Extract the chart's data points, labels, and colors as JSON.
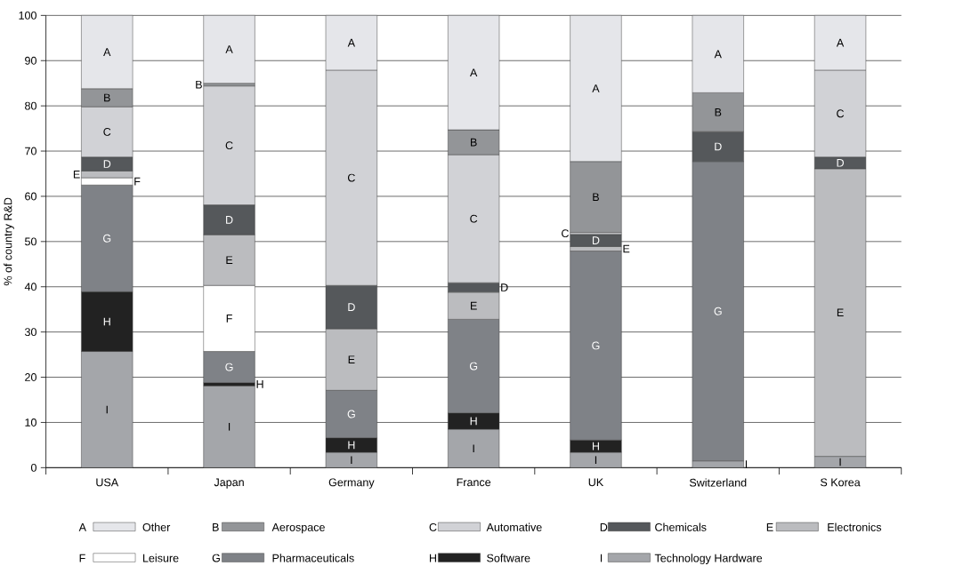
{
  "chart_data": {
    "type": "bar",
    "stacked": true,
    "ylabel": "% of country R&D",
    "categories": [
      "USA",
      "Japan",
      "Germany",
      "France",
      "UK",
      "Switzerland",
      "S Korea"
    ],
    "ylim": [
      0,
      100
    ],
    "yticks": [
      0,
      10,
      20,
      30,
      40,
      50,
      60,
      70,
      80,
      90,
      100
    ],
    "grid": "y",
    "legend": "bottom",
    "series": [
      {
        "name": "Technology Hardware",
        "color": "#a4a6aa",
        "values": [
          25.7,
          18.1,
          3.4,
          8.5,
          3.4,
          1.5,
          2.5
        ],
        "value_labels": [
          "I",
          "I",
          "I",
          "I",
          "I",
          "I",
          "I"
        ]
      },
      {
        "name": "Software",
        "color": "#222222",
        "values": [
          13.2,
          0.7,
          3.2,
          3.6,
          2.7,
          null,
          null
        ],
        "value_labels": [
          "H",
          "H",
          "H",
          "H",
          "H",
          null,
          null
        ]
      },
      {
        "name": "Pharmaceuticals",
        "color": "#7f8287",
        "values": [
          23.6,
          6.9,
          10.5,
          20.7,
          41.8,
          66.2,
          null
        ],
        "value_labels": [
          "G",
          "G",
          "G",
          "G",
          "G",
          "G",
          null
        ]
      },
      {
        "name": "Leisure",
        "color": "#ffffff",
        "values": [
          1.6,
          14.6,
          null,
          null,
          null,
          null,
          null
        ],
        "value_labels": [
          "F",
          "F",
          null,
          null,
          null,
          null,
          null
        ]
      },
      {
        "name": "Electronics",
        "color": "#bbbcbf",
        "values": [
          1.5,
          11.2,
          13.6,
          6.0,
          1.0,
          null,
          63.6
        ],
        "value_labels": [
          "E",
          "E",
          "E",
          "E",
          "E",
          null,
          "E"
        ]
      },
      {
        "name": "Chemicals",
        "color": "#55585b",
        "values": [
          3.1,
          6.6,
          9.6,
          2.1,
          2.7,
          6.6,
          2.6
        ],
        "value_labels": [
          "D",
          "D",
          "D",
          "D",
          "D",
          "D",
          "D"
        ]
      },
      {
        "name": "Automative",
        "color": "#d1d2d6",
        "values": [
          11.1,
          26.3,
          47.6,
          28.3,
          0.4,
          null,
          19.2
        ],
        "value_labels": [
          "C",
          "C",
          "C",
          "C",
          "C",
          null,
          "C"
        ]
      },
      {
        "name": "Aerospace",
        "color": "#939598",
        "values": [
          4.0,
          0.6,
          null,
          5.5,
          15.7,
          8.6,
          null
        ],
        "value_labels": [
          "B",
          "B",
          null,
          "B",
          "B",
          "B",
          null
        ]
      },
      {
        "name": "Other",
        "color": "#e5e6ea",
        "values": [
          16.2,
          15.0,
          12.1,
          25.3,
          32.3,
          17.1,
          12.1
        ],
        "value_labels": [
          "A",
          "A",
          "A",
          "A",
          "A",
          "A",
          "A"
        ]
      }
    ]
  }
}
